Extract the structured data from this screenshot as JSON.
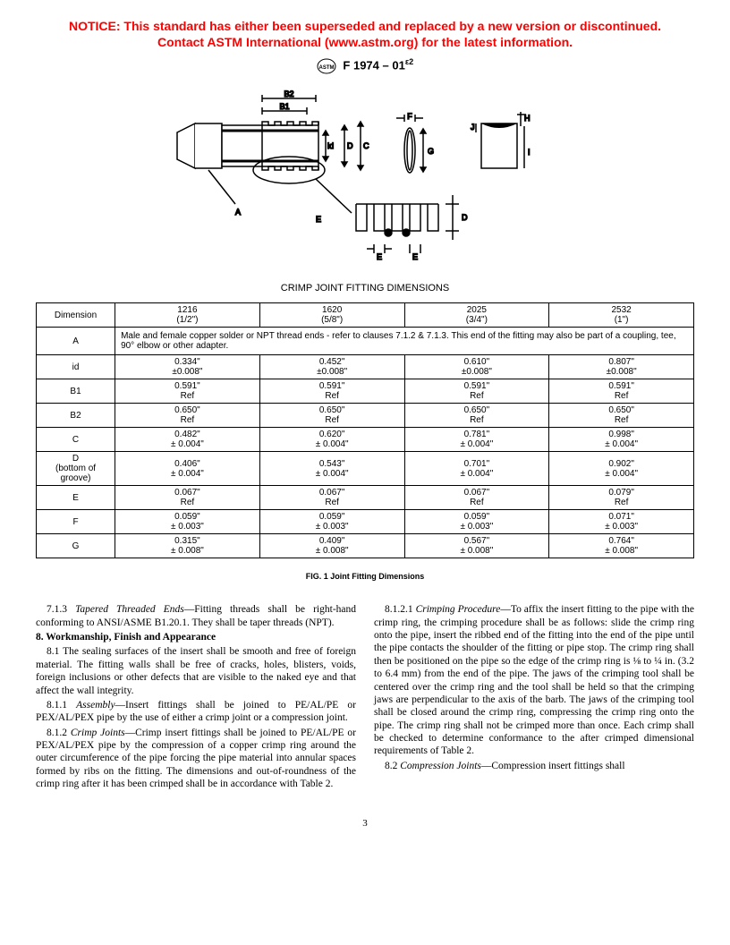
{
  "notice": {
    "line1": "NOTICE: This standard has either been superseded and replaced by a new version or discontinued.",
    "line2": "Contact ASTM International (www.astm.org) for the latest information.",
    "color": "#ff0000"
  },
  "designation": "F 1974 – 01",
  "designation_sup": "ε2",
  "table_title": "CRIMP JOINT FITTING DIMENSIONS",
  "fig_caption": "FIG. 1 Joint Fitting Dimensions",
  "table": {
    "headers": [
      "Dimension",
      "1216\n(1/2\")",
      "1620\n(5/8\")",
      "2025\n(3/4\")",
      "2532\n(1\")"
    ],
    "row_a_label": "A",
    "row_a_text": "Male and female copper solder or NPT thread ends - refer to clauses 7.1.2 & 7.1.3. This end of the fitting may also be part of a coupling, tee, 90° elbow or other adapter.",
    "rows": [
      {
        "label": "id",
        "v": [
          "0.334\"\n±0.008\"",
          "0.452\"\n±0.008\"",
          "0.610\"\n±0.008\"",
          "0.807\"\n±0.008\""
        ]
      },
      {
        "label": "B1",
        "v": [
          "0.591\"\nRef",
          "0.591\"\nRef",
          "0.591\"\nRef",
          "0.591\"\nRef"
        ]
      },
      {
        "label": "B2",
        "v": [
          "0.650\"\nRef",
          "0.650\"\nRef",
          "0.650\"\nRef",
          "0.650\"\nRef"
        ]
      },
      {
        "label": "C",
        "v": [
          "0.482\"\n± 0.004\"",
          "0.620\"\n± 0.004\"",
          "0.781\"\n± 0.004\"",
          "0.998\"\n± 0.004\""
        ]
      },
      {
        "label": "D\n(bottom of groove)",
        "v": [
          "0.406\"\n± 0.004\"",
          "0.543\"\n± 0.004\"",
          "0.701\"\n± 0.004\"",
          "0.902\"\n± 0.004\""
        ]
      },
      {
        "label": "E",
        "v": [
          "0.067\"\nRef",
          "0.067\"\nRef",
          "0.067\"\nRef",
          "0.079\"\nRef"
        ]
      },
      {
        "label": "F",
        "v": [
          "0.059\"\n± 0.003\"",
          "0.059\"\n± 0.003\"",
          "0.059\"\n± 0.003\"",
          "0.071\"\n± 0.003\""
        ]
      },
      {
        "label": "G",
        "v": [
          "0.315\"\n± 0.008\"",
          "0.409\"\n± 0.008\"",
          "0.567\"\n± 0.008\"",
          "0.764\"\n± 0.008\""
        ]
      }
    ]
  },
  "body": {
    "p713": "7.1.3 Tapered Threaded Ends—Fitting threads shall be right-hand conforming to ANSI/ASME B1.20.1. They shall be taper threads (NPT).",
    "s8_head": "8. Workmanship, Finish and Appearance",
    "p81": "8.1 The sealing surfaces of the insert shall be smooth and free of foreign material. The fitting walls shall be free of cracks, holes, blisters, voids, foreign inclusions or other defects that are visible to the naked eye and that affect the wall integrity.",
    "p811": "8.1.1 Assembly—Insert fittings shall be joined to PE/AL/PE or PEX/AL/PEX pipe by the use of either a crimp joint or a compression joint.",
    "p812": "8.1.2 Crimp Joints—Crimp insert fittings shall be joined to PE/AL/PE or PEX/AL/PEX pipe by the compression of a copper crimp ring around the outer circumference of the pipe forcing the pipe material into annular spaces formed by ribs on the fitting. The dimensions and out-of-roundness of the crimp ring after it has been crimped shall be in accordance with Table 2.",
    "p8121": "8.1.2.1 Crimping Procedure—To affix the insert fitting to the pipe with the crimp ring, the crimping procedure shall be as follows: slide the crimp ring onto the pipe, insert the ribbed end of the fitting into the end of the pipe until the pipe contacts the shoulder of the fitting or pipe stop. The crimp ring shall then be positioned on the pipe so the edge of the crimp ring is ⅛ to ¼ in. (3.2 to 6.4 mm) from the end of the pipe. The jaws of the crimping tool shall be centered over the crimp ring and the tool shall be held so that the crimping jaws are perpendicular to the axis of the barb. The jaws of the crimping tool shall be closed around the crimp ring, compressing the crimp ring onto the pipe. The crimp ring shall not be crimped more than once. Each crimp shall be checked to determine conformance to the after crimped dimensional requirements of Table 2.",
    "p82": "8.2 Compression Joints—Compression insert fittings shall"
  },
  "page_number": "3"
}
